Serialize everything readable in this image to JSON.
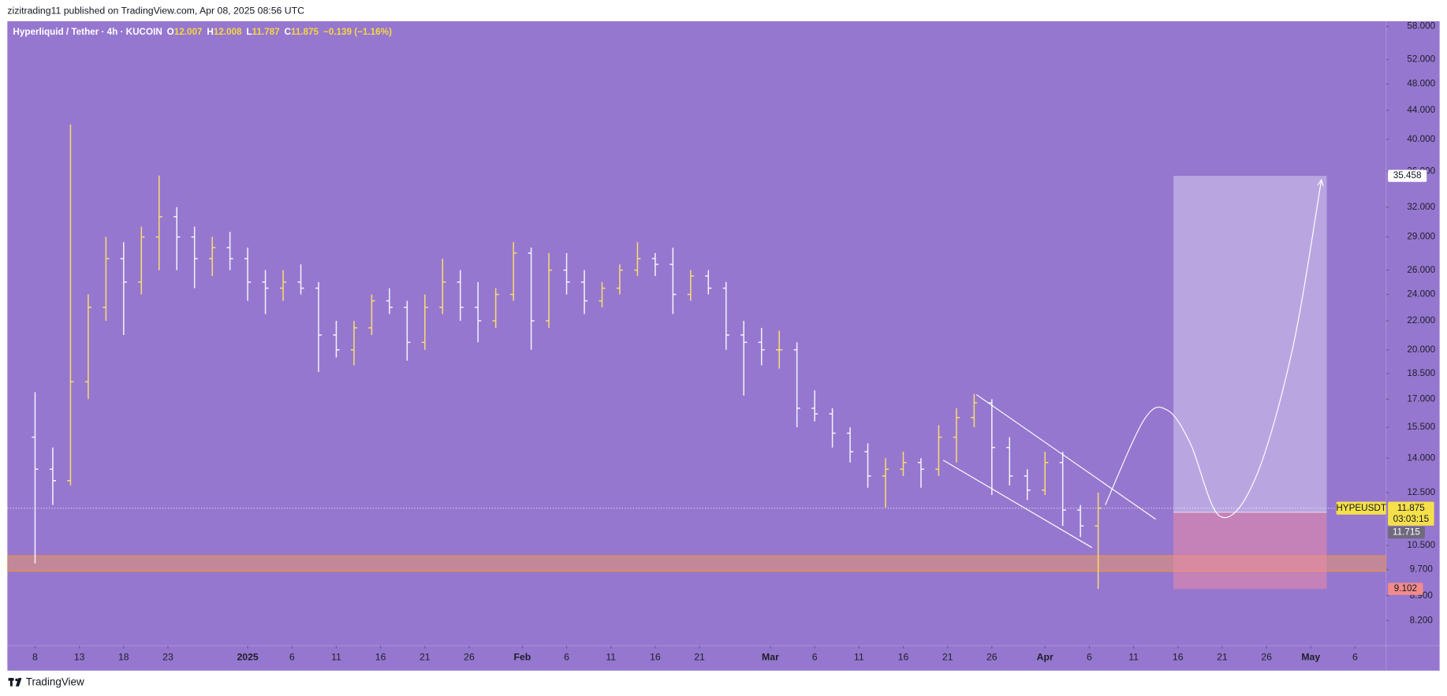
{
  "header": {
    "publisher": "zizitrading11 published on TradingView.com, Apr 08, 2025 08:56 UTC"
  },
  "footer": {
    "brand": "TradingView"
  },
  "chart_data": {
    "type": "ohlc",
    "legend": {
      "symbol": "Hyperliquid / Tether · 4h · KUCOIN",
      "items": [
        {
          "prefix": "O",
          "value": "12.007"
        },
        {
          "prefix": "H",
          "value": "12.008"
        },
        {
          "prefix": "L",
          "value": "11.787"
        },
        {
          "prefix": "C",
          "value": "11.875"
        }
      ],
      "change": "−0.139 (−1.16%)"
    },
    "log_scale": true,
    "grid": false,
    "up_color": "#f7dc6f",
    "down_color": "#f4f1fb",
    "background": "#9677cf",
    "xlim": [
      -3.125,
      152.5
    ],
    "xticks": [
      {
        "value": 0,
        "label": "8"
      },
      {
        "value": 5,
        "label": "13"
      },
      {
        "value": 10,
        "label": "18"
      },
      {
        "value": 15,
        "label": "23"
      },
      {
        "value": 24,
        "label": "2025"
      },
      {
        "value": 29,
        "label": "6"
      },
      {
        "value": 34,
        "label": "11"
      },
      {
        "value": 39,
        "label": "16"
      },
      {
        "value": 44,
        "label": "21"
      },
      {
        "value": 49,
        "label": "26"
      },
      {
        "value": 55,
        "label": "Feb"
      },
      {
        "value": 60,
        "label": "6"
      },
      {
        "value": 65,
        "label": "11"
      },
      {
        "value": 70,
        "label": "16"
      },
      {
        "value": 75,
        "label": "21"
      },
      {
        "value": 83,
        "label": "Mar"
      },
      {
        "value": 88,
        "label": "6"
      },
      {
        "value": 93,
        "label": "11"
      },
      {
        "value": 98,
        "label": "16"
      },
      {
        "value": 103,
        "label": "21"
      },
      {
        "value": 108,
        "label": "26"
      },
      {
        "value": 114,
        "label": "Apr"
      },
      {
        "value": 119,
        "label": "6"
      },
      {
        "value": 124,
        "label": "11"
      },
      {
        "value": 129,
        "label": "16"
      },
      {
        "value": 134,
        "label": "21"
      },
      {
        "value": 139,
        "label": "26"
      },
      {
        "value": 144,
        "label": "May"
      },
      {
        "value": 149,
        "label": "6"
      }
    ],
    "ylim": [
      7.55,
      59
    ],
    "yticks": [
      {
        "value": 58,
        "label": "58.000"
      },
      {
        "value": 52,
        "label": "52.000"
      },
      {
        "value": 48,
        "label": "48.000"
      },
      {
        "value": 44,
        "label": "44.000"
      },
      {
        "value": 40,
        "label": "40.000"
      },
      {
        "value": 36,
        "label": "36.000"
      },
      {
        "value": 32,
        "label": "32.000"
      },
      {
        "value": 29,
        "label": "29.000"
      },
      {
        "value": 26,
        "label": "26.000"
      },
      {
        "value": 24,
        "label": "24.000"
      },
      {
        "value": 22,
        "label": "22.000"
      },
      {
        "value": 20,
        "label": "20.000"
      },
      {
        "value": 18.5,
        "label": "18.500"
      },
      {
        "value": 17,
        "label": "17.000"
      },
      {
        "value": 15.5,
        "label": "15.500"
      },
      {
        "value": 14,
        "label": "14.000"
      },
      {
        "value": 12.5,
        "label": "12.500"
      },
      {
        "value": 10.5,
        "label": "10.500"
      },
      {
        "value": 9.7,
        "label": "9.700"
      },
      {
        "value": 8.9,
        "label": "8.900"
      },
      {
        "value": 8.2,
        "label": "8.200"
      }
    ],
    "x": [
      0,
      2,
      4,
      6,
      8,
      10,
      12,
      14,
      16,
      18,
      20,
      22,
      24,
      26,
      28,
      30,
      32,
      34,
      36,
      38,
      40,
      42,
      44,
      46,
      48,
      50,
      52,
      54,
      56,
      58,
      60,
      62,
      64,
      66,
      68,
      70,
      72,
      74,
      76,
      78,
      80,
      82,
      84,
      86,
      88,
      90,
      92,
      94,
      96,
      98,
      100,
      102,
      104,
      106,
      108,
      110,
      112,
      114,
      116,
      118,
      120
    ],
    "open": [
      15,
      13.5,
      13,
      18,
      23,
      27,
      25,
      29,
      31,
      29,
      27,
      28,
      27,
      25,
      24.5,
      25,
      24.5,
      21,
      20,
      21.5,
      23.5,
      23,
      20.5,
      23,
      25,
      23,
      22,
      24,
      27.5,
      22,
      26,
      25,
      23.5,
      24.5,
      26,
      27,
      26.5,
      24,
      25.5,
      24.5,
      21,
      20.5,
      20,
      20,
      16.5,
      16.2,
      15.2,
      14.3,
      13.2,
      13.5,
      13.8,
      13.5,
      15,
      16,
      16.8,
      14.5,
      13.2,
      12.6,
      13.8,
      11.8,
      11.2
    ],
    "high": [
      17.4,
      14.5,
      42,
      24,
      29,
      28.5,
      30,
      35.5,
      32,
      30,
      29,
      29.5,
      28,
      26,
      26,
      26.5,
      25,
      22,
      22,
      24,
      24.5,
      23.5,
      24,
      27,
      26,
      25,
      24.5,
      28.5,
      28,
      27.5,
      27.5,
      26,
      25,
      26.5,
      28.5,
      27.5,
      28,
      26,
      26,
      25,
      22,
      21.5,
      21.3,
      20.5,
      17.5,
      16.5,
      15.5,
      14.7,
      14,
      14.3,
      14,
      15.6,
      16.5,
      17.3,
      17,
      15,
      13.5,
      14.3,
      14.3,
      12,
      12.5
    ],
    "low": [
      9.9,
      12,
      12.8,
      17,
      22,
      21,
      24,
      26,
      26,
      24.5,
      25.5,
      26,
      23.5,
      22.5,
      23.5,
      24,
      18.6,
      19.5,
      19,
      21,
      22.5,
      19.3,
      20,
      22.5,
      22,
      20.5,
      21.5,
      23.5,
      20,
      21.5,
      24,
      22.5,
      23,
      24,
      25.5,
      25.5,
      22.5,
      23.5,
      24,
      20,
      17.2,
      19,
      18.8,
      15.5,
      15.8,
      14.5,
      13.8,
      12.7,
      11.9,
      13.2,
      12.7,
      13.2,
      13.8,
      15.5,
      12.4,
      12.8,
      12.2,
      12.4,
      11.2,
      10.8,
      9.1
    ],
    "close": [
      13.5,
      13,
      18,
      23,
      27,
      25,
      29,
      31,
      29,
      27,
      28,
      27,
      25,
      24.5,
      25,
      24.5,
      21,
      20,
      21.5,
      23.5,
      23,
      20.5,
      23,
      25,
      23,
      22,
      24,
      27.5,
      22,
      26,
      25,
      23.5,
      24.5,
      26,
      27,
      26.5,
      24,
      25.5,
      24.5,
      21,
      20.5,
      20,
      20,
      16.5,
      16.2,
      15.2,
      14.3,
      13.2,
      13.5,
      13.8,
      13.5,
      15,
      16,
      16.8,
      14.5,
      13.2,
      12.6,
      13.8,
      11.8,
      11.2,
      11.875
    ],
    "support_zone": [
      9.65,
      10.15
    ],
    "channel": [
      [
        [
          106.25,
          17.26
        ],
        [
          126.5,
          11.45
        ]
      ],
      [
        [
          102.5,
          13.91
        ],
        [
          119.3,
          10.43
        ]
      ]
    ],
    "projection": [
      [
        120.8,
        12.0
      ],
      [
        125.2,
        15.9
      ],
      [
        127.8,
        16.4
      ],
      [
        130.4,
        14.7
      ],
      [
        133.75,
        11.56
      ],
      [
        137.7,
        13.06
      ],
      [
        141.9,
        19.96
      ],
      [
        145.2,
        35.0
      ]
    ],
    "position": {
      "x_start": 128.5,
      "x_end": 145.8,
      "target": 35.458,
      "entry": 11.715,
      "stop": 9.102
    },
    "last_price": 11.875,
    "symbol_tag": "HYPEUSDT",
    "countdown": "03:03:15"
  }
}
